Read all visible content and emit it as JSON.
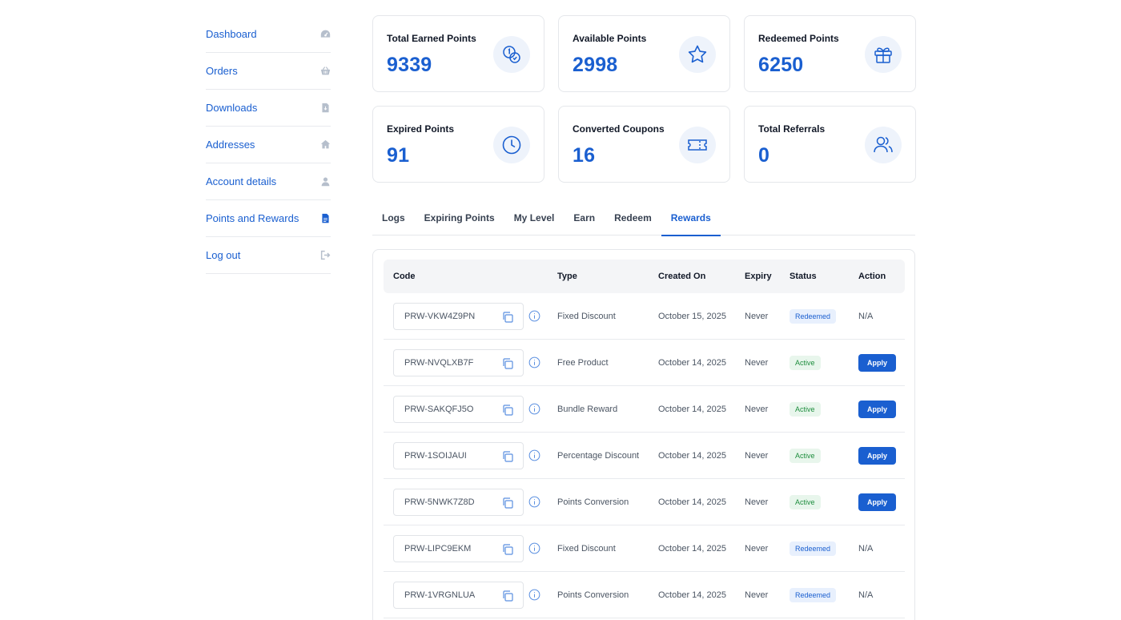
{
  "sidebar": {
    "items": [
      {
        "label": "Dashboard",
        "icon": "gauge-icon"
      },
      {
        "label": "Orders",
        "icon": "basket-icon"
      },
      {
        "label": "Downloads",
        "icon": "file-download-icon"
      },
      {
        "label": "Addresses",
        "icon": "home-icon"
      },
      {
        "label": "Account details",
        "icon": "user-icon"
      },
      {
        "label": "Points and Rewards",
        "icon": "document-icon"
      },
      {
        "label": "Log out",
        "icon": "logout-icon"
      }
    ]
  },
  "stats": [
    {
      "title": "Total Earned Points",
      "value": "9339",
      "icon": "coins-icon"
    },
    {
      "title": "Available Points",
      "value": "2998",
      "icon": "star-icon"
    },
    {
      "title": "Redeemed Points",
      "value": "6250",
      "icon": "gift-icon"
    },
    {
      "title": "Expired Points",
      "value": "91",
      "icon": "clock-icon"
    },
    {
      "title": "Converted Coupons",
      "value": "16",
      "icon": "ticket-icon"
    },
    {
      "title": "Total Referrals",
      "value": "0",
      "icon": "users-icon"
    }
  ],
  "tabs": [
    {
      "label": "Logs",
      "active": false
    },
    {
      "label": "Expiring Points",
      "active": false
    },
    {
      "label": "My Level",
      "active": false
    },
    {
      "label": "Earn",
      "active": false
    },
    {
      "label": "Redeem",
      "active": false
    },
    {
      "label": "Rewards",
      "active": true
    }
  ],
  "table": {
    "headers": {
      "code": "Code",
      "type": "Type",
      "created_on": "Created On",
      "expiry": "Expiry",
      "status": "Status",
      "action": "Action"
    },
    "rows": [
      {
        "code": "PRW-VKW4Z9PN",
        "type": "Fixed Discount",
        "created_on": "October 15, 2025",
        "expiry": "Never",
        "status": "Redeemed",
        "action": "N/A"
      },
      {
        "code": "PRW-NVQLXB7F",
        "type": "Free Product",
        "created_on": "October 14, 2025",
        "expiry": "Never",
        "status": "Active",
        "action": "Apply"
      },
      {
        "code": "PRW-SAKQFJ5O",
        "type": "Bundle Reward",
        "created_on": "October 14, 2025",
        "expiry": "Never",
        "status": "Active",
        "action": "Apply"
      },
      {
        "code": "PRW-1SOIJAUI",
        "type": "Percentage Discount",
        "created_on": "October 14, 2025",
        "expiry": "Never",
        "status": "Active",
        "action": "Apply"
      },
      {
        "code": "PRW-5NWK7Z8D",
        "type": "Points Conversion",
        "created_on": "October 14, 2025",
        "expiry": "Never",
        "status": "Active",
        "action": "Apply"
      },
      {
        "code": "PRW-LIPC9EKM",
        "type": "Fixed Discount",
        "created_on": "October 14, 2025",
        "expiry": "Never",
        "status": "Redeemed",
        "action": "N/A"
      },
      {
        "code": "PRW-1VRGNLUA",
        "type": "Points Conversion",
        "created_on": "October 14, 2025",
        "expiry": "Never",
        "status": "Redeemed",
        "action": "N/A"
      }
    ]
  },
  "colors": {
    "accent": "#1a5fd0",
    "active_badge_bg": "#e8f6ec",
    "active_badge_text": "#1e8e3e",
    "redeemed_badge_bg": "#e8f0fd"
  }
}
